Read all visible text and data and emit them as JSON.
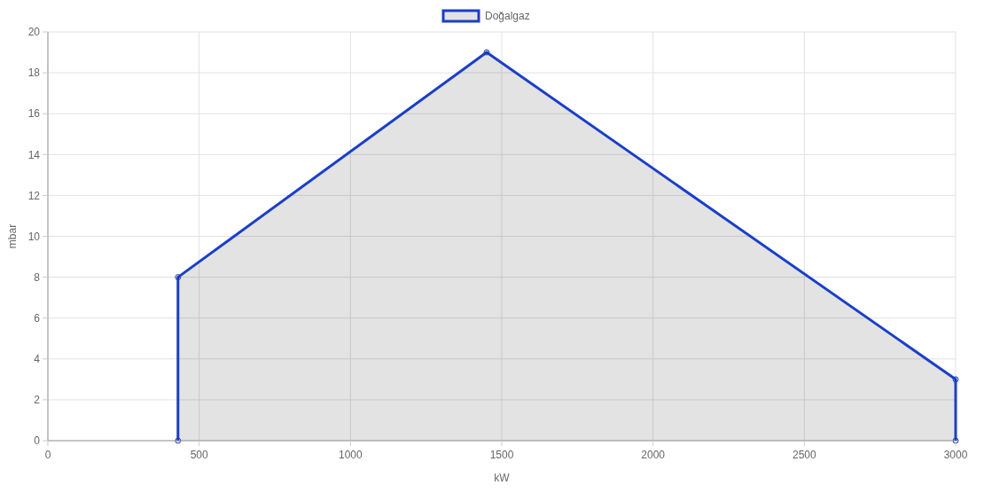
{
  "chart_data": {
    "type": "area",
    "xlabel": "kW",
    "ylabel": "mbar",
    "x": [
      430,
      430,
      1450,
      3000,
      3000
    ],
    "series": [
      {
        "name": "Doğalgaz",
        "color": "#1a3fc8",
        "values": [
          0,
          8,
          19,
          3,
          0
        ]
      }
    ],
    "xlim": [
      0,
      3000
    ],
    "xticks": [
      0,
      500,
      1000,
      1500,
      2000,
      2500,
      3000
    ],
    "ylim": [
      0,
      20
    ],
    "yticks": [
      0,
      2,
      4,
      6,
      8,
      10,
      12,
      14,
      16,
      18,
      20
    ],
    "grid": true,
    "legend": "top",
    "marker": "circle",
    "line_style": "solid"
  }
}
